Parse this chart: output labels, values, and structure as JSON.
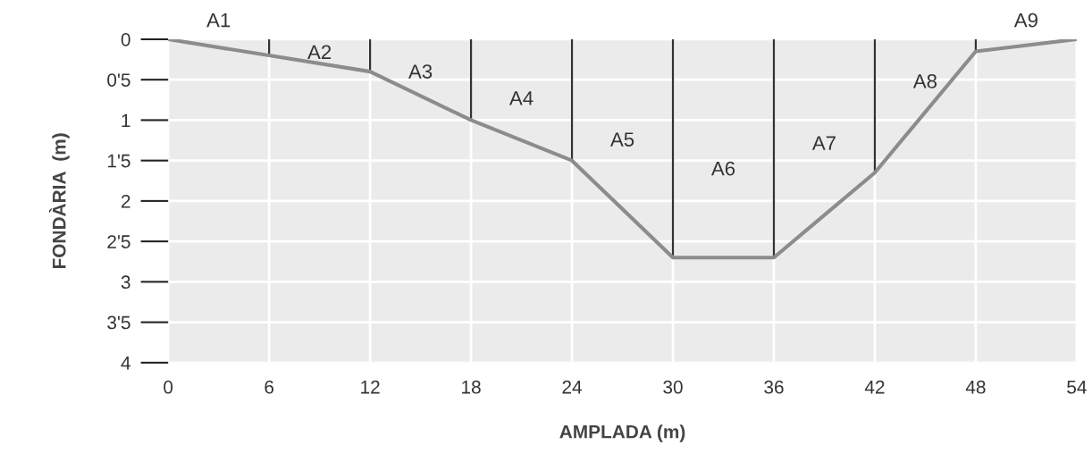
{
  "chart_data": {
    "type": "line",
    "xlabel": "AMPLADA (m)",
    "ylabel": "FONDÀRIA  (m)",
    "x": [
      0,
      6,
      12,
      18,
      24,
      30,
      36,
      42,
      48,
      54
    ],
    "series": [
      {
        "color": "#8c8c8c",
        "values": [
          0,
          0.2,
          0.4,
          1.0,
          1.5,
          2.7,
          2.7,
          1.65,
          0.15,
          0
        ]
      },
      {
        "type": "bar",
        "color": "#333333",
        "x": [
          6,
          12,
          18,
          24,
          30,
          36,
          42,
          48
        ],
        "values": [
          0.2,
          0.4,
          1.0,
          1.5,
          2.7,
          2.7,
          1.65,
          0.15
        ]
      }
    ],
    "xlim": [
      0,
      54
    ],
    "xticks": [
      0,
      6,
      12,
      18,
      24,
      30,
      36,
      42,
      48,
      54
    ],
    "ylim": [
      4,
      0
    ],
    "yticks": [
      0,
      {
        "value": 0.5,
        "label": "0'5"
      },
      1,
      {
        "value": 1.5,
        "label": "1'5"
      },
      2,
      {
        "value": 2.5,
        "label": "2'5"
      },
      3,
      {
        "value": 3.5,
        "label": "3'5"
      },
      4
    ],
    "grid": true,
    "marker": "none",
    "line_style": "solid",
    "annotations": [
      "A1",
      "A2",
      "A3",
      "A4",
      "A5",
      "A6",
      "A7",
      "A8",
      "A9"
    ]
  }
}
